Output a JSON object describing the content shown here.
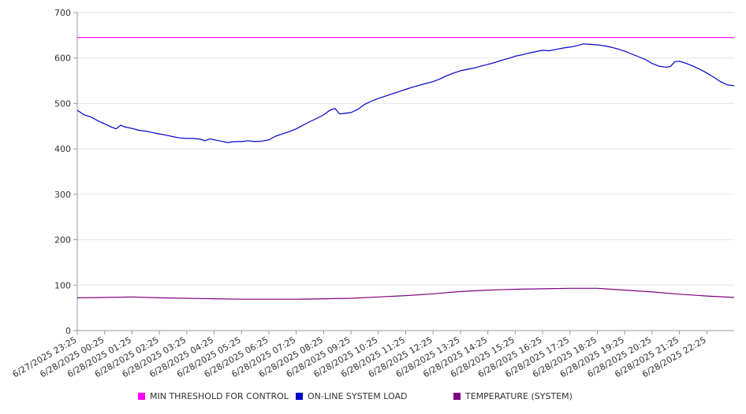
{
  "chart_data": {
    "type": "line",
    "title": "",
    "xlabel": "",
    "ylabel": "",
    "ylim": [
      0,
      700
    ],
    "y_ticks": [
      0,
      100,
      200,
      300,
      400,
      500,
      600,
      700
    ],
    "grid": "horizontal",
    "legend_position": "bottom",
    "x_tick_labels": [
      "6/27/2025 23:25",
      "6/28/2025 00:25",
      "6/28/2025 01:25",
      "6/28/2025 02:25",
      "6/28/2025 03:25",
      "6/28/2025 04:25",
      "6/28/2025 05:25",
      "6/28/2025 06:25",
      "6/28/2025 07:25",
      "6/28/2025 08:25",
      "6/28/2025 09:25",
      "6/28/2025 10:25",
      "6/28/2025 11:25",
      "6/28/2025 12:25",
      "6/28/2025 13:25",
      "6/28/2025 14:25",
      "6/28/2025 15:25",
      "6/28/2025 16:25",
      "6/28/2025 17:25",
      "6/28/2025 18:25",
      "6/28/2025 19:25",
      "6/28/2025 20:25",
      "6/28/2025 21:25",
      "6/28/2025 22:25"
    ],
    "x_end": "6/28/2025 23:25",
    "series": [
      {
        "name": "MIN THRESHOLD FOR CONTROL",
        "color": "#ff00ff",
        "points": [
          [
            "6/27/2025 23:25",
            645
          ],
          [
            "6/28/2025 23:25",
            645
          ]
        ]
      },
      {
        "name": "ON-LINE SYSTEM LOAD",
        "color": "#0000cc",
        "points": [
          [
            "6/27/2025 23:25",
            485
          ],
          [
            "6/27/2025 23:40",
            475
          ],
          [
            "6/27/2025 23:55",
            470
          ],
          [
            "6/28/2025 00:10",
            462
          ],
          [
            "6/28/2025 00:25",
            455
          ],
          [
            "6/28/2025 00:40",
            448
          ],
          [
            "6/28/2025 00:50",
            444
          ],
          [
            "6/28/2025 01:00",
            452
          ],
          [
            "6/28/2025 01:10",
            448
          ],
          [
            "6/28/2025 01:25",
            445
          ],
          [
            "6/28/2025 01:40",
            441
          ],
          [
            "6/28/2025 01:55",
            439
          ],
          [
            "6/28/2025 02:10",
            436
          ],
          [
            "6/28/2025 02:25",
            433
          ],
          [
            "6/28/2025 02:40",
            430
          ],
          [
            "6/28/2025 02:55",
            427
          ],
          [
            "6/28/2025 03:10",
            424
          ],
          [
            "6/28/2025 03:25",
            423
          ],
          [
            "6/28/2025 03:40",
            423
          ],
          [
            "6/28/2025 03:55",
            421
          ],
          [
            "6/28/2025 04:05",
            418
          ],
          [
            "6/28/2025 04:15",
            422
          ],
          [
            "6/28/2025 04:25",
            420
          ],
          [
            "6/28/2025 04:40",
            417
          ],
          [
            "6/28/2025 04:55",
            414
          ],
          [
            "6/28/2025 05:10",
            416
          ],
          [
            "6/28/2025 05:25",
            416
          ],
          [
            "6/28/2025 05:40",
            418
          ],
          [
            "6/28/2025 05:55",
            416
          ],
          [
            "6/28/2025 06:10",
            417
          ],
          [
            "6/28/2025 06:25",
            420
          ],
          [
            "6/28/2025 06:40",
            428
          ],
          [
            "6/28/2025 06:55",
            433
          ],
          [
            "6/28/2025 07:10",
            438
          ],
          [
            "6/28/2025 07:25",
            444
          ],
          [
            "6/28/2025 07:40",
            452
          ],
          [
            "6/28/2025 07:55",
            460
          ],
          [
            "6/28/2025 08:10",
            467
          ],
          [
            "6/28/2025 08:25",
            475
          ],
          [
            "6/28/2025 08:40",
            486
          ],
          [
            "6/28/2025 08:50",
            489
          ],
          [
            "6/28/2025 09:00",
            477
          ],
          [
            "6/28/2025 09:10",
            478
          ],
          [
            "6/28/2025 09:25",
            480
          ],
          [
            "6/28/2025 09:40",
            487
          ],
          [
            "6/28/2025 09:55",
            498
          ],
          [
            "6/28/2025 10:10",
            505
          ],
          [
            "6/28/2025 10:25",
            511
          ],
          [
            "6/28/2025 10:40",
            516
          ],
          [
            "6/28/2025 10:55",
            521
          ],
          [
            "6/28/2025 11:10",
            526
          ],
          [
            "6/28/2025 11:25",
            531
          ],
          [
            "6/28/2025 11:40",
            536
          ],
          [
            "6/28/2025 11:55",
            540
          ],
          [
            "6/28/2025 12:10",
            544
          ],
          [
            "6/28/2025 12:25",
            548
          ],
          [
            "6/28/2025 12:40",
            554
          ],
          [
            "6/28/2025 12:55",
            561
          ],
          [
            "6/28/2025 13:10",
            567
          ],
          [
            "6/28/2025 13:25",
            572
          ],
          [
            "6/28/2025 13:40",
            575
          ],
          [
            "6/28/2025 13:55",
            578
          ],
          [
            "6/28/2025 14:10",
            582
          ],
          [
            "6/28/2025 14:25",
            586
          ],
          [
            "6/28/2025 14:40",
            590
          ],
          [
            "6/28/2025 14:55",
            595
          ],
          [
            "6/28/2025 15:10",
            599
          ],
          [
            "6/28/2025 15:25",
            604
          ],
          [
            "6/28/2025 15:40",
            607
          ],
          [
            "6/28/2025 15:55",
            611
          ],
          [
            "6/28/2025 16:10",
            614
          ],
          [
            "6/28/2025 16:25",
            617
          ],
          [
            "6/28/2025 16:40",
            616
          ],
          [
            "6/28/2025 16:55",
            619
          ],
          [
            "6/28/2025 17:10",
            622
          ],
          [
            "6/28/2025 17:25",
            624
          ],
          [
            "6/28/2025 17:40",
            627
          ],
          [
            "6/28/2025 17:55",
            631
          ],
          [
            "6/28/2025 18:10",
            630
          ],
          [
            "6/28/2025 18:25",
            629
          ],
          [
            "6/28/2025 18:40",
            627
          ],
          [
            "6/28/2025 18:55",
            624
          ],
          [
            "6/28/2025 19:10",
            620
          ],
          [
            "6/28/2025 19:25",
            615
          ],
          [
            "6/28/2025 19:40",
            609
          ],
          [
            "6/28/2025 19:55",
            603
          ],
          [
            "6/28/2025 20:10",
            597
          ],
          [
            "6/28/2025 20:25",
            588
          ],
          [
            "6/28/2025 20:40",
            582
          ],
          [
            "6/28/2025 20:55",
            580
          ],
          [
            "6/28/2025 21:05",
            581
          ],
          [
            "6/28/2025 21:15",
            592
          ],
          [
            "6/28/2025 21:25",
            593
          ],
          [
            "6/28/2025 21:40",
            588
          ],
          [
            "6/28/2025 21:55",
            582
          ],
          [
            "6/28/2025 22:10",
            575
          ],
          [
            "6/28/2025 22:25",
            567
          ],
          [
            "6/28/2025 22:40",
            558
          ],
          [
            "6/28/2025 22:55",
            548
          ],
          [
            "6/28/2025 23:10",
            541
          ],
          [
            "6/28/2025 23:25",
            539
          ]
        ]
      },
      {
        "name": "TEMPERATURE (SYSTEM)",
        "color": "#800080",
        "points": [
          [
            "6/27/2025 23:25",
            72
          ],
          [
            "6/28/2025 00:25",
            73
          ],
          [
            "6/28/2025 01:25",
            74
          ],
          [
            "6/28/2025 02:25",
            72
          ],
          [
            "6/28/2025 03:25",
            71
          ],
          [
            "6/28/2025 04:25",
            70
          ],
          [
            "6/28/2025 05:25",
            69
          ],
          [
            "6/28/2025 06:25",
            69
          ],
          [
            "6/28/2025 07:25",
            69
          ],
          [
            "6/28/2025 08:25",
            70
          ],
          [
            "6/28/2025 09:25",
            71
          ],
          [
            "6/28/2025 10:25",
            74
          ],
          [
            "6/28/2025 11:25",
            77
          ],
          [
            "6/28/2025 12:25",
            81
          ],
          [
            "6/28/2025 13:25",
            86
          ],
          [
            "6/28/2025 14:25",
            89
          ],
          [
            "6/28/2025 15:25",
            91
          ],
          [
            "6/28/2025 16:25",
            92
          ],
          [
            "6/28/2025 17:25",
            93
          ],
          [
            "6/28/2025 18:25",
            93
          ],
          [
            "6/28/2025 19:25",
            89
          ],
          [
            "6/28/2025 20:25",
            85
          ],
          [
            "6/28/2025 21:25",
            80
          ],
          [
            "6/28/2025 22:25",
            76
          ],
          [
            "6/28/2025 23:25",
            73
          ]
        ]
      }
    ]
  }
}
